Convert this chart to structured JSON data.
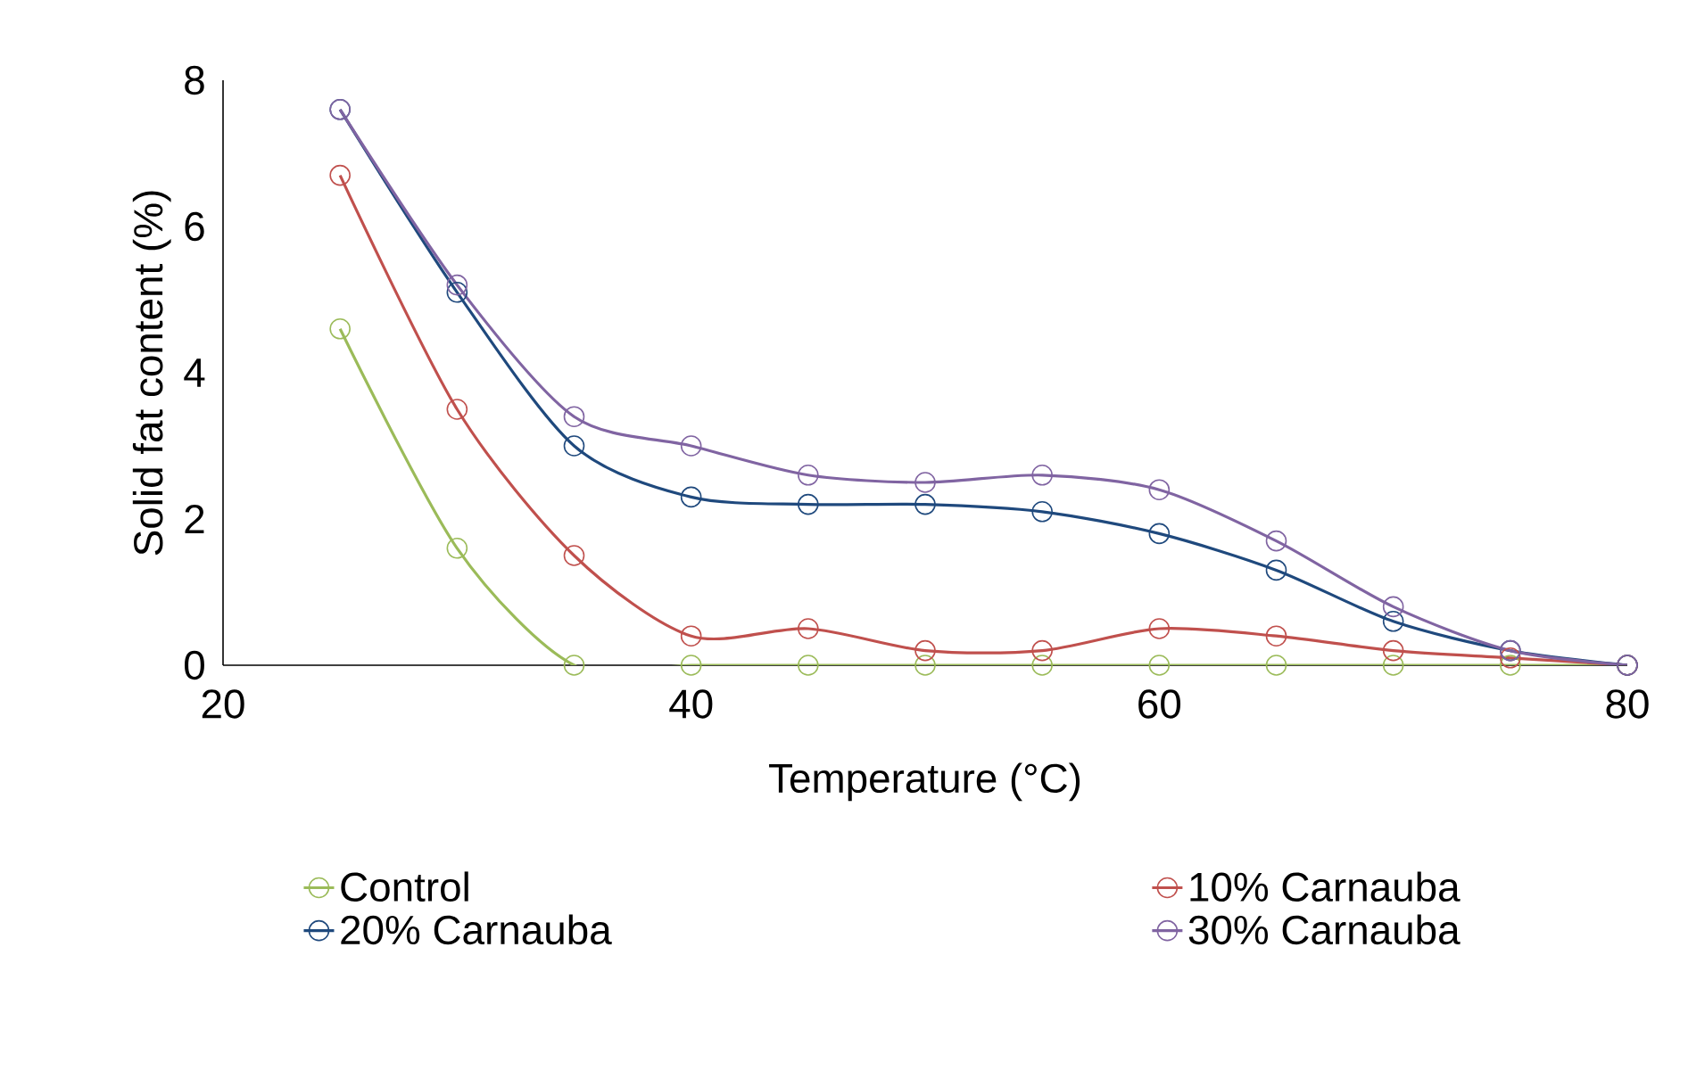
{
  "chart_data": {
    "type": "line",
    "xlabel": "Temperature (°C)",
    "ylabel": "Solid fat content (%)",
    "x": [
      25,
      30,
      35,
      40,
      45,
      50,
      55,
      60,
      65,
      70,
      75,
      80
    ],
    "series": [
      {
        "name": "Control",
        "color": "#9bbb59",
        "values": [
          4.6,
          1.6,
          0,
          0,
          0,
          0,
          0,
          0,
          0,
          0,
          0,
          0
        ]
      },
      {
        "name": "10% Carnauba",
        "color": "#c0504d",
        "values": [
          6.7,
          3.5,
          1.5,
          0.4,
          0.5,
          0.2,
          0.2,
          0.5,
          0.4,
          0.2,
          0.1,
          0
        ]
      },
      {
        "name": "20% Carnauba",
        "color": "#1f497d",
        "values": [
          7.6,
          5.1,
          3.0,
          2.3,
          2.2,
          2.2,
          2.1,
          1.8,
          1.3,
          0.6,
          0.2,
          0
        ]
      },
      {
        "name": "30% Carnauba",
        "color": "#8064a2",
        "values": [
          7.6,
          5.2,
          3.4,
          3.0,
          2.6,
          2.5,
          2.6,
          2.4,
          1.7,
          0.8,
          0.2,
          0
        ]
      }
    ],
    "xlim": [
      20,
      80
    ],
    "xticks": [
      20,
      40,
      60,
      80
    ],
    "ylim": [
      0,
      8
    ],
    "yticks": [
      0,
      2,
      4,
      6,
      8
    ],
    "grid": false,
    "legend": "bottom",
    "marker": "circle",
    "line_style": "solid"
  }
}
